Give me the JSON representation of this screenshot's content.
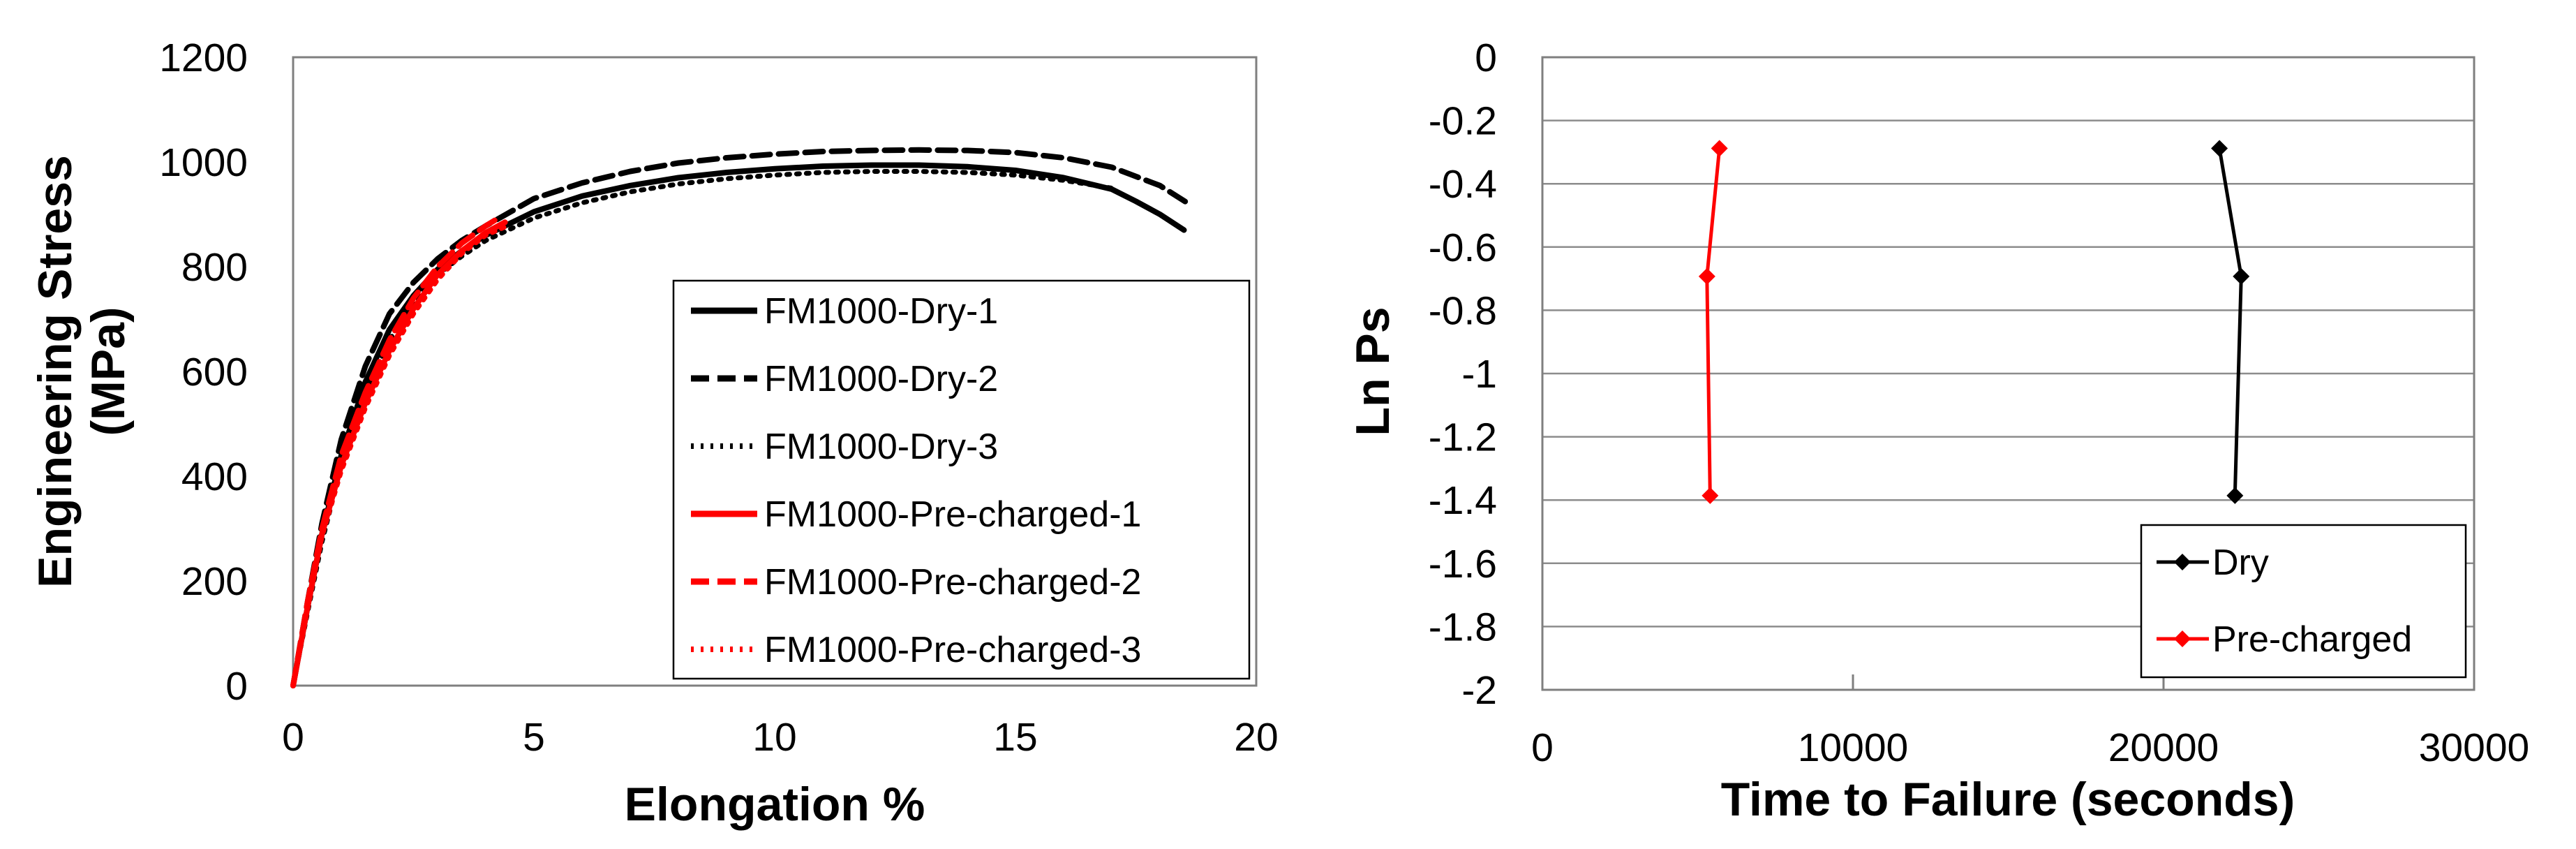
{
  "chart_data": [
    {
      "type": "line",
      "title": "",
      "xlabel": "Elongation %",
      "ylabel_lines": [
        "Engineering Stress",
        "(MPa)"
      ],
      "xlim": [
        0,
        20
      ],
      "ylim": [
        0,
        1200
      ],
      "xticks": [
        "0",
        "5",
        "10",
        "15",
        "20"
      ],
      "yticks": [
        "0",
        "200",
        "400",
        "600",
        "800",
        "1000",
        "1200"
      ],
      "grid": false,
      "legend_position": "bottom-right",
      "series": [
        {
          "name": "FM1000-Dry-1",
          "color": "#000000",
          "dash": "solid",
          "x": [
            0,
            0.3,
            0.6,
            1,
            1.5,
            2,
            2.5,
            3,
            3.5,
            4,
            5,
            6,
            7,
            8,
            9,
            10,
            11,
            12,
            13,
            14,
            15,
            16,
            17,
            17.5,
            18,
            18.5
          ],
          "y": [
            0,
            150,
            290,
            440,
            580,
            680,
            745,
            795,
            830,
            860,
            905,
            935,
            955,
            970,
            980,
            987,
            992,
            994,
            994,
            991,
            984,
            970,
            948,
            925,
            900,
            870
          ]
        },
        {
          "name": "FM1000-Dry-2",
          "color": "#000000",
          "dash": "dashed",
          "x": [
            0,
            0.3,
            0.6,
            1,
            1.5,
            2,
            2.5,
            3,
            3.5,
            4,
            5,
            6,
            7,
            8,
            9,
            10,
            11,
            12,
            13,
            14,
            15,
            16,
            17,
            18,
            18.6
          ],
          "y": [
            0,
            160,
            310,
            470,
            610,
            710,
            770,
            815,
            850,
            878,
            930,
            960,
            982,
            998,
            1008,
            1015,
            1020,
            1022,
            1023,
            1022,
            1018,
            1008,
            990,
            955,
            920
          ]
        },
        {
          "name": "FM1000-Dry-3",
          "color": "#000000",
          "dash": "dotted",
          "x": [
            0,
            0.3,
            0.6,
            1,
            1.5,
            2,
            2.5,
            3,
            3.5,
            4,
            5,
            6,
            7,
            8,
            9,
            10,
            11,
            12,
            13,
            14,
            15,
            16,
            17
          ],
          "y": [
            0,
            140,
            275,
            420,
            560,
            660,
            730,
            785,
            820,
            850,
            893,
            922,
            943,
            958,
            968,
            975,
            980,
            982,
            982,
            980,
            975,
            965,
            950
          ]
        },
        {
          "name": "FM1000-Pre-charged-1",
          "color": "#ff0000",
          "dash": "solid",
          "x": [
            0,
            0.3,
            0.6,
            1,
            1.5,
            2,
            2.5,
            3,
            3.5,
            4,
            4.4
          ],
          "y": [
            0,
            150,
            290,
            420,
            540,
            640,
            720,
            785,
            830,
            865,
            885
          ]
        },
        {
          "name": "FM1000-Pre-charged-2",
          "color": "#ff0000",
          "dash": "dashed",
          "x": [
            0,
            0.3,
            0.6,
            1,
            1.5,
            2,
            2.5,
            3,
            3.5,
            4,
            4.3
          ],
          "y": [
            0,
            160,
            300,
            440,
            560,
            660,
            740,
            800,
            845,
            878,
            895
          ]
        },
        {
          "name": "FM1000-Pre-charged-3",
          "color": "#ff0000",
          "dash": "dotted",
          "x": [
            0,
            0.3,
            0.6,
            1,
            1.5,
            2,
            2.5,
            3,
            3.5,
            4,
            4.5
          ],
          "y": [
            0,
            145,
            285,
            410,
            530,
            630,
            710,
            775,
            825,
            860,
            880
          ]
        }
      ]
    },
    {
      "type": "line",
      "title": "",
      "xlabel": "Time to Failure (seconds)",
      "ylabel": "Ln Ps",
      "xlim": [
        0,
        30000
      ],
      "ylim": [
        -2,
        0
      ],
      "xticks": [
        "0",
        "10000",
        "20000",
        "30000"
      ],
      "yticks": [
        "0",
        "-0.2",
        "-0.4",
        "-0.6",
        "-0.8",
        "-1",
        "-1.2",
        "-1.4",
        "-1.6",
        "-1.8",
        "-2"
      ],
      "grid": true,
      "legend_position": "bottom-right",
      "marker": "diamond",
      "series": [
        {
          "name": "Dry",
          "color": "#000000",
          "x": [
            21800,
            22500,
            22300
          ],
          "y": [
            -0.288,
            -0.693,
            -1.386
          ]
        },
        {
          "name": "Pre-charged",
          "color": "#ff0000",
          "x": [
            5700,
            5300,
            5400
          ],
          "y": [
            -0.288,
            -0.693,
            -1.386
          ]
        }
      ]
    }
  ]
}
